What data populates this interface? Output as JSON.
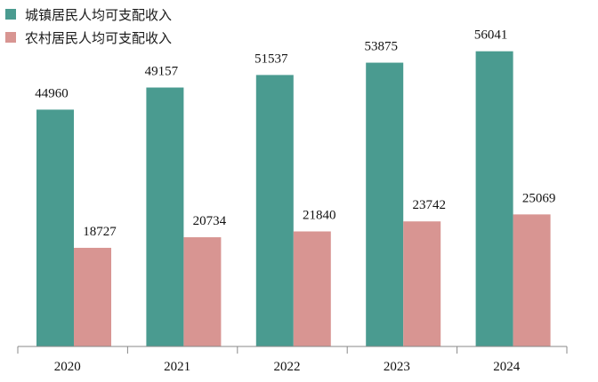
{
  "chart_data": {
    "type": "bar",
    "categories": [
      "2020",
      "2021",
      "2022",
      "2023",
      "2024"
    ],
    "series": [
      {
        "name": "城镇居民人均可支配收入",
        "color": "#4a9b90",
        "values": [
          44960,
          49157,
          51537,
          53875,
          56041
        ]
      },
      {
        "name": "农村居民人均可支配收入",
        "color": "#d89592",
        "values": [
          18727,
          20734,
          21840,
          23742,
          25069
        ]
      }
    ],
    "data_labels": {
      "s0": [
        "44960",
        "49157",
        "51537",
        "53875",
        "56041"
      ],
      "s1": [
        "18727",
        "20734",
        "21840",
        "23742",
        "25069"
      ]
    },
    "ylim": [
      0,
      60000
    ],
    "grid": false,
    "legend_position": "top-left"
  }
}
